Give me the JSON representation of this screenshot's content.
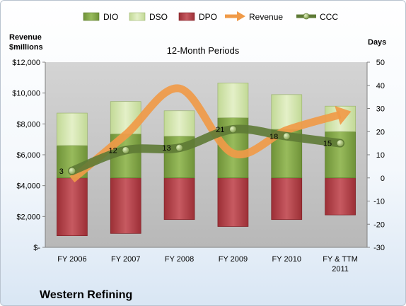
{
  "chart_data": {
    "type": "bar",
    "subtitle": "12-Month Periods",
    "company": "Western Refining",
    "left_axis": {
      "label_line1": "Revenue",
      "label_line2": "$millions",
      "range": [
        0,
        12000
      ],
      "ticks": [
        0,
        2000,
        4000,
        6000,
        8000,
        10000,
        12000
      ],
      "tick_labels": [
        "$-",
        "$2,000",
        "$4,000",
        "$6,000",
        "$8,000",
        "$10,000",
        "$12,000"
      ]
    },
    "right_axis": {
      "label": "Days",
      "range": [
        -30,
        50
      ],
      "ticks": [
        -30,
        -20,
        -10,
        0,
        10,
        20,
        30,
        40,
        50
      ],
      "tick_labels": [
        "-30",
        "-20",
        "-10",
        "0",
        "10",
        "20",
        "30",
        "40",
        "50"
      ]
    },
    "categories": [
      {
        "line1": "FY 2006",
        "line2": ""
      },
      {
        "line1": "FY 2007",
        "line2": ""
      },
      {
        "line1": "FY 2008",
        "line2": ""
      },
      {
        "line1": "FY 2009",
        "line2": ""
      },
      {
        "line1": "FY 2010",
        "line2": ""
      },
      {
        "line1": "FY & TTM",
        "line2": "2011"
      }
    ],
    "series": [
      {
        "name": "DIO",
        "color": "#7ea04a",
        "values": [
          14,
          19,
          18,
          26,
          21,
          20
        ]
      },
      {
        "name": "DSO",
        "color": "#d3e6ae",
        "values": [
          14,
          14,
          11,
          15,
          15,
          11
        ]
      },
      {
        "name": "DPO",
        "color": "#b5434a",
        "values": [
          -25,
          -24,
          -18,
          -21,
          -18,
          -16
        ]
      },
      {
        "name": "Revenue",
        "color": "#f09a48",
        "values": [
          4400,
          7300,
          10300,
          6100,
          7600,
          8600
        ]
      },
      {
        "name": "CCC",
        "color": "#5e7a35",
        "values": [
          3,
          12,
          13,
          21,
          18,
          15
        ]
      }
    ],
    "ccc_labels": [
      "3",
      "12",
      "13",
      "21",
      "18",
      "15"
    ],
    "legend_position": "top",
    "grid": false
  }
}
